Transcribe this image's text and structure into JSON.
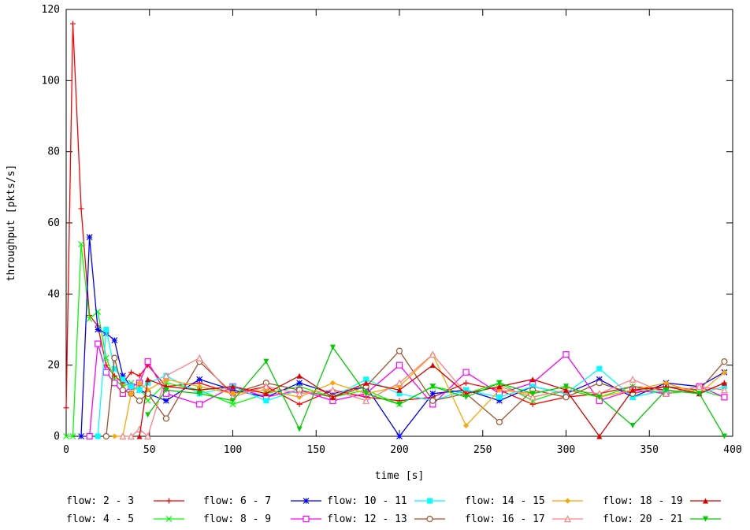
{
  "chart_data": {
    "type": "line",
    "xlabel": "time [s]",
    "ylabel": "throughput [pkts/s]",
    "xlim": [
      0,
      400
    ],
    "ylim": [
      0,
      120
    ],
    "xticks": [
      "0",
      "50",
      "100",
      "150",
      "200",
      "250",
      "300",
      "350",
      "400"
    ],
    "yticks": [
      "0",
      "20",
      "40",
      "60",
      "80",
      "100",
      "120"
    ],
    "grid": false,
    "legend_position": "bottom",
    "series": [
      {
        "name": "flow: 2 - 3",
        "color": "#ff0000",
        "marker": "plus",
        "x": [
          0,
          4,
          9,
          14,
          19,
          24,
          29,
          34,
          39,
          44,
          49,
          60,
          80,
          100,
          120,
          140,
          160,
          180,
          200,
          220,
          240,
          260,
          280,
          300,
          320,
          340,
          360,
          380,
          395
        ],
        "y": [
          8,
          116,
          64,
          34,
          31,
          20,
          17,
          15,
          18,
          17,
          20,
          14,
          15,
          12,
          14,
          9,
          13,
          11,
          10,
          11,
          15,
          13,
          9,
          11,
          12,
          14,
          13,
          12,
          15
        ]
      },
      {
        "name": "flow: 4 - 5",
        "color": "#00ff00",
        "marker": "x",
        "x": [
          0,
          4,
          9,
          14,
          19,
          24,
          29,
          34,
          39,
          44,
          49,
          60,
          80,
          100,
          120,
          140,
          160,
          180,
          200,
          220,
          240,
          260,
          280,
          300,
          320,
          340,
          360,
          380,
          395
        ],
        "y": [
          0,
          0,
          54,
          33,
          35,
          22,
          16,
          14,
          15,
          14,
          10,
          15,
          13,
          9,
          12,
          14,
          11,
          13,
          9,
          14,
          12,
          15,
          10,
          13,
          11,
          14,
          12,
          13,
          11
        ]
      },
      {
        "name": "flow: 6 - 7",
        "color": "#0000ff",
        "marker": "star",
        "x": [
          9,
          14,
          19,
          24,
          29,
          34,
          39,
          44,
          49,
          60,
          80,
          100,
          120,
          140,
          160,
          180,
          200,
          220,
          240,
          260,
          280,
          300,
          320,
          340,
          360,
          380,
          395
        ],
        "y": [
          0,
          56,
          30,
          29,
          27,
          17,
          14,
          13,
          12,
          10,
          16,
          13,
          11,
          15,
          12,
          14,
          0,
          12,
          13,
          10,
          14,
          12,
          16,
          11,
          15,
          14,
          18
        ]
      },
      {
        "name": "flow: 8 - 9",
        "color": "#ff00ff",
        "marker": "square",
        "x": [
          14,
          19,
          24,
          29,
          34,
          39,
          44,
          49,
          60,
          80,
          100,
          120,
          140,
          160,
          180,
          200,
          220,
          240,
          260,
          280,
          300,
          320,
          340,
          360,
          380,
          395
        ],
        "y": [
          0,
          26,
          18,
          15,
          12,
          14,
          15,
          21,
          12,
          9,
          14,
          11,
          13,
          10,
          12,
          20,
          9,
          18,
          12,
          15,
          23,
          10,
          13,
          12,
          14,
          11
        ]
      },
      {
        "name": "flow: 10 - 11",
        "color": "#00ffff",
        "marker": "filled-square",
        "x": [
          19,
          24,
          29,
          34,
          39,
          44,
          49,
          60,
          80,
          100,
          120,
          140,
          160,
          180,
          200,
          220,
          240,
          260,
          280,
          300,
          320,
          340,
          360,
          380,
          395
        ],
        "y": [
          0,
          30,
          19,
          16,
          14,
          13,
          15,
          17,
          12,
          14,
          10,
          13,
          11,
          16,
          12,
          10,
          13,
          11,
          14,
          12,
          19,
          11,
          13,
          12,
          14
        ]
      },
      {
        "name": "flow: 12 - 13",
        "color": "#a0522d",
        "marker": "circle",
        "x": [
          24,
          29,
          34,
          39,
          44,
          49,
          60,
          80,
          100,
          120,
          140,
          160,
          180,
          200,
          220,
          240,
          260,
          280,
          300,
          320,
          340,
          360,
          380,
          395
        ],
        "y": [
          0,
          22,
          13,
          12,
          10,
          12,
          5,
          21,
          12,
          15,
          13,
          11,
          14,
          24,
          10,
          12,
          4,
          13,
          11,
          15,
          12,
          14,
          13,
          21
        ]
      },
      {
        "name": "flow: 14 - 15",
        "color": "#ffa500",
        "marker": "filled-diamond",
        "x": [
          29,
          34,
          39,
          44,
          49,
          60,
          80,
          100,
          120,
          140,
          160,
          180,
          200,
          220,
          240,
          260,
          280,
          300,
          320,
          340,
          360,
          380,
          395
        ],
        "y": [
          0,
          0,
          12,
          15,
          13,
          16,
          14,
          12,
          13,
          11,
          15,
          12,
          14,
          23,
          3,
          13,
          12,
          14,
          11,
          13,
          15,
          12,
          18
        ]
      },
      {
        "name": "flow: 16 - 17",
        "color": "#ff8080",
        "marker": "triangle",
        "x": [
          34,
          39,
          44,
          49,
          60,
          80,
          100,
          120,
          140,
          160,
          180,
          200,
          220,
          240,
          260,
          280,
          300,
          320,
          340,
          360,
          380,
          395
        ],
        "y": [
          0,
          0,
          2,
          0,
          17,
          22,
          11,
          14,
          12,
          13,
          10,
          15,
          23,
          12,
          14,
          11,
          13,
          12,
          16,
          12,
          14,
          13
        ]
      },
      {
        "name": "flow: 18 - 19",
        "color": "#dd0000",
        "marker": "filled-triangle",
        "x": [
          44,
          49,
          60,
          80,
          100,
          120,
          140,
          160,
          180,
          200,
          220,
          240,
          260,
          280,
          300,
          320,
          340,
          360,
          380,
          395
        ],
        "y": [
          0,
          16,
          14,
          13,
          14,
          12,
          17,
          11,
          15,
          13,
          20,
          12,
          14,
          16,
          13,
          0,
          13,
          14,
          12,
          15
        ]
      },
      {
        "name": "flow: 20 - 21",
        "color": "#00cc00",
        "marker": "filled-inverted-triangle",
        "x": [
          49,
          60,
          80,
          100,
          120,
          140,
          160,
          180,
          200,
          220,
          240,
          260,
          280,
          300,
          320,
          340,
          360,
          380,
          395
        ],
        "y": [
          6,
          13,
          12,
          10,
          21,
          2,
          25,
          12,
          9,
          14,
          11,
          15,
          12,
          14,
          11,
          3,
          13,
          12,
          0
        ]
      }
    ]
  }
}
